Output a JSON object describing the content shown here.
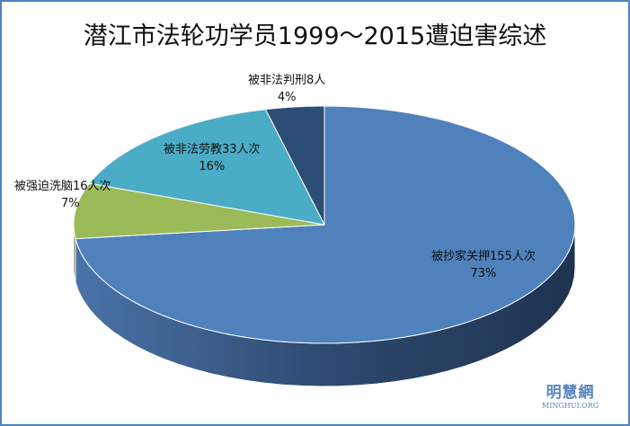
{
  "chart_data": {
    "type": "pie",
    "style": "3d",
    "title": "潜江市法轮功学员1999～2015遭迫害综述",
    "slices": [
      {
        "label": "被抄家关押155人次",
        "value": 155,
        "percent": "73%",
        "color": "#4f81bd"
      },
      {
        "label": "被强迫洗脑16人次",
        "value": 16,
        "percent": "7%",
        "color": "#9bbb59"
      },
      {
        "label": "被非法劳教33人次",
        "value": 33,
        "percent": "16%",
        "color": "#4bacc6"
      },
      {
        "label": "被非法判刑8人",
        "value": 8,
        "percent": "4%",
        "color": "#2c4d75"
      }
    ],
    "legend": "none"
  },
  "watermark": {
    "cn": "明慧網",
    "en": "MINGHUI.ORG"
  }
}
